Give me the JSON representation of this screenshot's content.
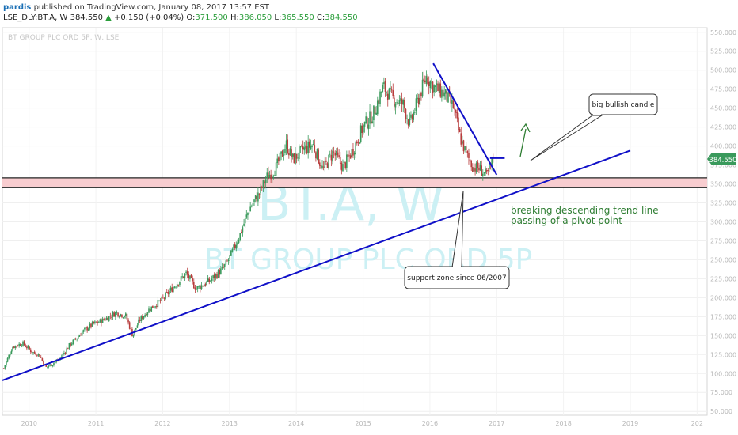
{
  "header": {
    "author": "pardis",
    "published_text": "published on TradingView.com, January 08, 2017 13:57 EST",
    "symbol_line": "LSE_DLY:BT.A, W",
    "last": "384.550",
    "change": "+0.150 (+0.04%)",
    "change_arrow": "▲",
    "o_label": "O:",
    "o_value": "371.500",
    "h_label": "H:",
    "h_value": "386.050",
    "l_label": "L:",
    "l_value": "365.550",
    "c_label": "C:",
    "c_value": "384.550"
  },
  "symbol_watermark": "BT GROUP PLC ORD 5P, W, LSE",
  "big_watermark": {
    "symbol": "BT.A, W",
    "name": "BT GROUP PLC ORD 5P"
  },
  "price_tag": "384.550",
  "annotations": {
    "callout_candle": "big bullish candle",
    "callout_support": "support zone since 06/2007",
    "breakout_line1": "breaking descending trend line",
    "breakout_line2": "passing of a pivot point"
  },
  "colors": {
    "bull": "#3a9a5c",
    "bear": "#b83c3c",
    "trendline": "#1010c8",
    "zone_fill": "#f8cdd0",
    "zone_border": "#222222",
    "annotation_green": "#2e7d32",
    "price_tag_bg": "#3a9a5c"
  },
  "chart_data": {
    "type": "candlestick",
    "y_axis_ticks": [
      "550.000",
      "525.000",
      "500.000",
      "475.000",
      "450.000",
      "425.000",
      "400.000",
      "375.000",
      "350.000",
      "325.000",
      "300.000",
      "275.000",
      "250.000",
      "225.000",
      "200.000",
      "175.000",
      "150.000",
      "125.000",
      "100.000",
      "75.000",
      "50.000"
    ],
    "x_axis_ticks": [
      "2010",
      "2011",
      "2012",
      "2013",
      "2014",
      "2015",
      "2016",
      "2017",
      "2018",
      "2019",
      "202"
    ],
    "ylim": [
      45,
      556
    ],
    "xlim": [
      2009.6,
      2020.15
    ],
    "last_price": 384.55,
    "price_path": [
      [
        2009.62,
        107
      ],
      [
        2009.75,
        135
      ],
      [
        2009.9,
        140
      ],
      [
        2010.05,
        128
      ],
      [
        2010.15,
        125
      ],
      [
        2010.25,
        108
      ],
      [
        2010.45,
        118
      ],
      [
        2010.6,
        137
      ],
      [
        2010.8,
        155
      ],
      [
        2010.95,
        165
      ],
      [
        2011.1,
        170
      ],
      [
        2011.3,
        180
      ],
      [
        2011.45,
        176
      ],
      [
        2011.55,
        150
      ],
      [
        2011.65,
        170
      ],
      [
        2011.8,
        185
      ],
      [
        2012.0,
        198
      ],
      [
        2012.2,
        218
      ],
      [
        2012.35,
        232
      ],
      [
        2012.5,
        212
      ],
      [
        2012.7,
        222
      ],
      [
        2012.9,
        238
      ],
      [
        2013.0,
        252
      ],
      [
        2013.15,
        282
      ],
      [
        2013.3,
        318
      ],
      [
        2013.45,
        338
      ],
      [
        2013.55,
        358
      ],
      [
        2013.7,
        372
      ],
      [
        2013.85,
        402
      ],
      [
        2013.95,
        382
      ],
      [
        2014.1,
        395
      ],
      [
        2014.25,
        402
      ],
      [
        2014.4,
        368
      ],
      [
        2014.55,
        392
      ],
      [
        2014.7,
        372
      ],
      [
        2014.85,
        395
      ],
      [
        2015.0,
        425
      ],
      [
        2015.15,
        442
      ],
      [
        2015.3,
        478
      ],
      [
        2015.45,
        462
      ],
      [
        2015.6,
        455
      ],
      [
        2015.7,
        428
      ],
      [
        2015.85,
        468
      ],
      [
        2015.95,
        492
      ],
      [
        2016.05,
        478
      ],
      [
        2016.2,
        470
      ],
      [
        2016.35,
        452
      ],
      [
        2016.45,
        412
      ],
      [
        2016.55,
        388
      ],
      [
        2016.65,
        372
      ],
      [
        2016.75,
        370
      ],
      [
        2016.85,
        360
      ],
      [
        2016.95,
        384.55
      ]
    ],
    "support_zone": {
      "top": 358,
      "bottom": 345,
      "since": "06/2007"
    },
    "trend_lines": {
      "ascending_support": {
        "start": [
          2009.6,
          91
        ],
        "end": [
          2019.0,
          394
        ]
      },
      "descending_resistance": {
        "start": [
          2016.05,
          509
        ],
        "end": [
          2017.0,
          362
        ]
      },
      "pivot_breakout_level": {
        "start": [
          2016.9,
          384
        ],
        "end": [
          2017.12,
          384
        ]
      }
    }
  }
}
